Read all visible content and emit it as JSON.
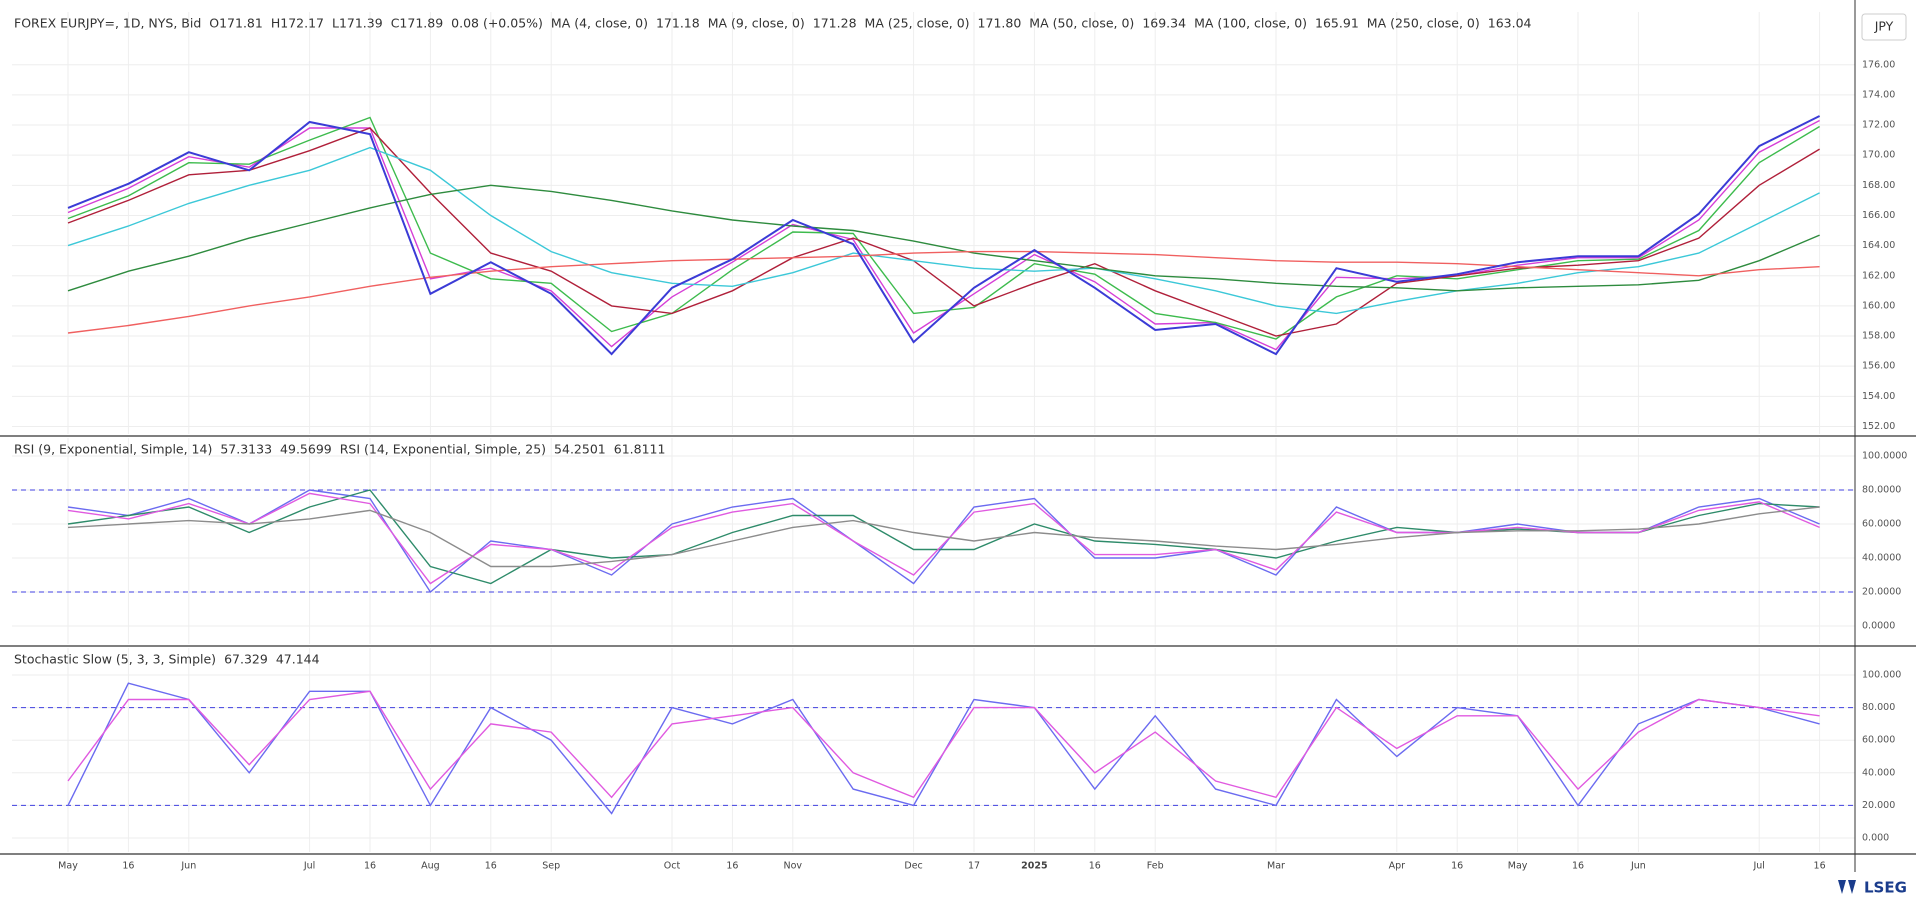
{
  "chart_data": [
    {
      "type": "line",
      "title": "FOREX EURJPY=, 1D, NYS, Bid",
      "ohlc": [
        "O171.81",
        "H172.17",
        "L171.39",
        "C171.89"
      ],
      "change": "0.08 (+0.05%)",
      "currency": "JPY",
      "categories": [
        "May",
        "16",
        "Jun",
        null,
        "Jul",
        "16",
        "Aug",
        "16",
        "Sep",
        null,
        "Oct",
        "16",
        "Nov",
        null,
        "Dec",
        "17",
        "2025",
        "16",
        "Feb",
        null,
        "Mar",
        null,
        "Apr",
        "16",
        "May",
        "16",
        "Jun",
        null,
        "Jul",
        "16"
      ],
      "values": [
        166.5,
        168.1,
        170.2,
        169.0,
        172.2,
        171.4,
        160.8,
        162.9,
        160.8,
        156.8,
        161.2,
        163.1,
        165.7,
        164.1,
        157.6,
        161.2,
        163.7,
        161.2,
        158.4,
        158.8,
        156.8,
        162.5,
        161.6,
        162.1,
        162.9,
        163.3,
        163.3,
        166.1,
        170.6,
        172.6
      ],
      "color": "#3b3bd6",
      "series": [
        {
          "name": "MA (4, close, 0)",
          "last": "171.18",
          "color": "#d63fd6",
          "values": [
            166.2,
            167.8,
            169.9,
            169.2,
            171.8,
            171.8,
            161.8,
            162.5,
            161.0,
            157.3,
            160.6,
            162.9,
            165.4,
            164.4,
            158.2,
            160.8,
            163.4,
            161.6,
            158.8,
            158.9,
            157.1,
            161.9,
            161.8,
            162.0,
            162.7,
            163.2,
            163.2,
            165.7,
            170.2,
            172.3
          ]
        },
        {
          "name": "MA (9, close, 0)",
          "last": "171.28",
          "color": "#3dbb4d",
          "values": [
            165.8,
            167.3,
            169.5,
            169.4,
            171.0,
            172.5,
            163.5,
            161.8,
            161.5,
            158.3,
            159.5,
            162.4,
            164.9,
            164.8,
            159.5,
            159.9,
            162.8,
            162.1,
            159.5,
            158.9,
            157.8,
            160.6,
            162.0,
            161.8,
            162.4,
            163.0,
            163.1,
            165.0,
            169.5,
            171.9
          ]
        },
        {
          "name": "MA (25, close, 0)",
          "last": "171.80",
          "color": "#b0203a",
          "values": [
            165.5,
            167.0,
            168.7,
            169.0,
            170.3,
            171.8,
            167.5,
            163.5,
            162.3,
            160.0,
            159.5,
            161.0,
            163.2,
            164.5,
            163.0,
            160.0,
            161.5,
            162.8,
            161.0,
            159.5,
            158.0,
            158.8,
            161.5,
            162.0,
            162.5,
            162.7,
            163.0,
            164.5,
            168.0,
            170.4
          ]
        },
        {
          "name": "MA (50, close, 0)",
          "last": "169.34",
          "color": "#3cc8d8",
          "values": [
            164.0,
            165.3,
            166.8,
            168.0,
            169.0,
            170.5,
            169.0,
            166.0,
            163.6,
            162.2,
            161.5,
            161.3,
            162.2,
            163.5,
            163.0,
            162.5,
            162.3,
            162.5,
            161.8,
            161.0,
            160.0,
            159.5,
            160.3,
            161.0,
            161.5,
            162.2,
            162.6,
            163.5,
            165.5,
            167.5
          ]
        },
        {
          "name": "MA (100, close, 0)",
          "last": "165.91",
          "color": "#2e8b3e",
          "values": [
            161.0,
            162.3,
            163.3,
            164.5,
            165.5,
            166.5,
            167.4,
            168.0,
            167.6,
            167.0,
            166.3,
            165.7,
            165.3,
            165.0,
            164.3,
            163.5,
            163.0,
            162.5,
            162.0,
            161.8,
            161.5,
            161.3,
            161.2,
            161.0,
            161.2,
            161.3,
            161.4,
            161.7,
            163.0,
            164.7
          ]
        },
        {
          "name": "MA (250, close, 0)",
          "last": "163.04",
          "color": "#f06060",
          "values": [
            158.2,
            158.7,
            159.3,
            160.0,
            160.6,
            161.3,
            161.9,
            162.3,
            162.6,
            162.8,
            163.0,
            163.1,
            163.2,
            163.3,
            163.5,
            163.6,
            163.6,
            163.5,
            163.4,
            163.2,
            163.0,
            162.9,
            162.9,
            162.8,
            162.6,
            162.4,
            162.2,
            162.0,
            162.4,
            162.6
          ]
        }
      ],
      "ylim": [
        151.5,
        179.5
      ],
      "yticks": [
        {
          "value": 152,
          "label": "152.00"
        },
        {
          "value": 154,
          "label": "154.00"
        },
        {
          "value": 156,
          "label": "156.00"
        },
        {
          "value": 158,
          "label": "158.00"
        },
        {
          "value": 160,
          "label": "160.00"
        },
        {
          "value": 162,
          "label": "162.00"
        },
        {
          "value": 164,
          "label": "164.00"
        },
        {
          "value": 166,
          "label": "166.00"
        },
        {
          "value": 168,
          "label": "168.00"
        },
        {
          "value": 170,
          "label": "170.00"
        },
        {
          "value": 172,
          "label": "172.00"
        },
        {
          "value": 174,
          "label": "174.00"
        },
        {
          "value": 176,
          "label": "176.00"
        }
      ],
      "grid": true
    },
    {
      "type": "line",
      "series": [
        {
          "name": "RSI (9, Exponential, Simple, 14)",
          "last": "57.3133",
          "color": "#6b6bf0",
          "values": [
            70,
            65,
            75,
            60,
            80,
            75,
            20,
            50,
            45,
            30,
            60,
            70,
            75,
            50,
            25,
            70,
            75,
            40,
            40,
            45,
            30,
            70,
            55,
            55,
            60,
            55,
            55,
            70,
            75,
            60
          ]
        },
        {
          "last": "49.5699",
          "color": "#2e8b6a",
          "values": [
            60,
            65,
            70,
            55,
            70,
            80,
            35,
            25,
            45,
            40,
            42,
            55,
            65,
            65,
            45,
            45,
            60,
            50,
            48,
            45,
            40,
            50,
            58,
            55,
            57,
            55,
            55,
            65,
            72,
            70
          ]
        },
        {
          "name": "RSI (14, Exponential, Simple, 25)",
          "last": "54.2501",
          "color": "#e05ae0",
          "values": [
            68,
            63,
            72,
            60,
            78,
            72,
            25,
            48,
            45,
            33,
            58,
            67,
            72,
            50,
            30,
            67,
            72,
            42,
            42,
            45,
            33,
            67,
            55,
            55,
            58,
            55,
            55,
            68,
            73,
            58
          ]
        },
        {
          "last": "61.8111",
          "color": "#8c8c8c",
          "values": [
            58,
            60,
            62,
            60,
            63,
            68,
            55,
            35,
            35,
            38,
            42,
            50,
            58,
            62,
            55,
            50,
            55,
            52,
            50,
            47,
            45,
            48,
            52,
            55,
            56,
            56,
            57,
            60,
            66,
            70
          ]
        }
      ],
      "levels": [
        80,
        20
      ],
      "ylim": [
        -10.6,
        110.6
      ],
      "yticks": [
        {
          "value": 0,
          "label": "0.0000"
        },
        {
          "value": 20,
          "label": "20.0000"
        },
        {
          "value": 40,
          "label": "40.0000"
        },
        {
          "value": 60,
          "label": "60.0000"
        },
        {
          "value": 80,
          "label": "80.0000"
        },
        {
          "value": 100,
          "label": "100.0000"
        }
      ],
      "grid": true
    },
    {
      "type": "line",
      "series": [
        {
          "name": "Stochastic Slow (5, 3, 3, Simple)",
          "last": "67.329",
          "color": "#6b6bf0",
          "values": [
            20,
            95,
            85,
            40,
            90,
            90,
            20,
            80,
            60,
            15,
            80,
            70,
            85,
            30,
            20,
            85,
            80,
            30,
            75,
            30,
            20,
            85,
            50,
            80,
            75,
            20,
            70,
            85,
            80,
            70
          ]
        },
        {
          "last": "47.144",
          "color": "#e05ae0",
          "values": [
            35,
            85,
            85,
            45,
            85,
            90,
            30,
            70,
            65,
            25,
            70,
            75,
            80,
            40,
            25,
            80,
            80,
            40,
            65,
            35,
            25,
            80,
            55,
            75,
            75,
            30,
            65,
            85,
            80,
            75
          ]
        }
      ],
      "levels": [
        80,
        20
      ],
      "ylim": [
        -8.6,
        116.6
      ],
      "yticks": [
        {
          "value": 0,
          "label": "0.000"
        },
        {
          "value": 20,
          "label": "20.000"
        },
        {
          "value": 40,
          "label": "40.000"
        },
        {
          "value": 60,
          "label": "60.000"
        },
        {
          "value": 80,
          "label": "80.000"
        },
        {
          "value": 100,
          "label": "100.000"
        }
      ],
      "grid": true
    }
  ],
  "brand": "LSEG"
}
